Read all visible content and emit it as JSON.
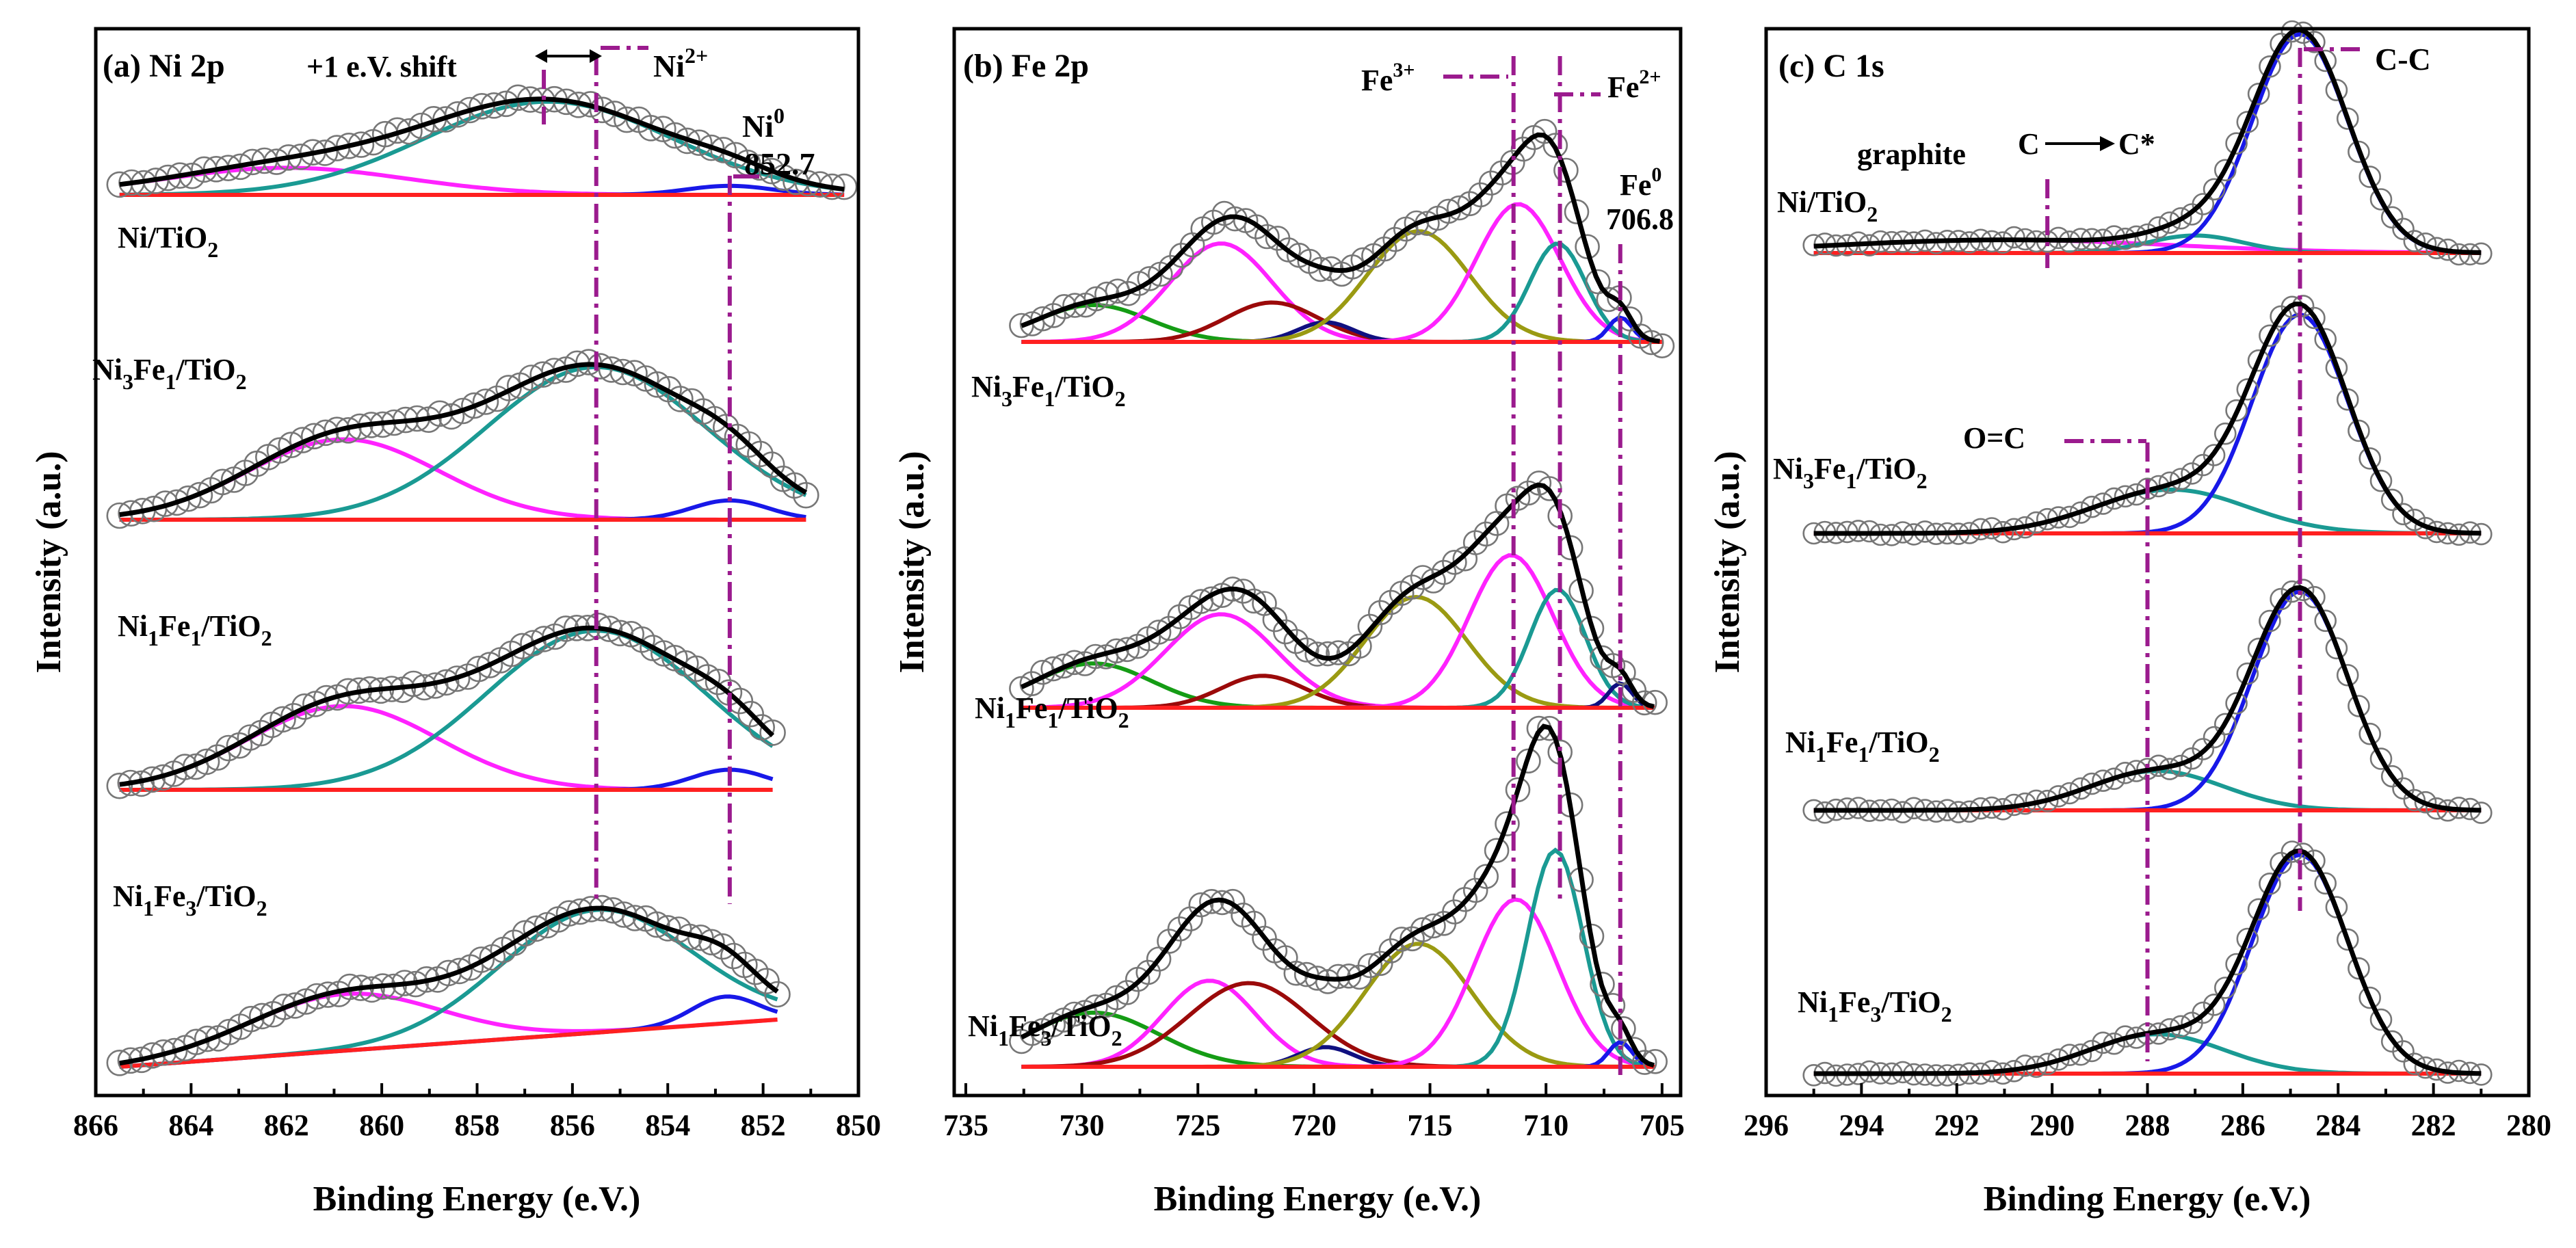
{
  "colors": {
    "experimental": "#777777",
    "envelope": "#000000",
    "background": "#ff2020",
    "dashed_marker": "#9b1b8e",
    "magenta": "#ff22ff",
    "teal": "#1a9a93",
    "blue": "#1818e8",
    "darkred": "#9b0a0a",
    "olive": "#9a9a12",
    "green": "#159c15",
    "navy": "#101080"
  },
  "chart_data": [
    {
      "type": "line",
      "panel": "(a)",
      "title": "Ni 2p",
      "xlabel": "Binding Energy (e.V.)",
      "ylabel": "Intensity (a.u.)",
      "xlim": [
        866,
        850
      ],
      "x_ticks": [
        "866",
        "864",
        "862",
        "860",
        "858",
        "856",
        "854",
        "852",
        "850"
      ],
      "x_tick_values": [
        866,
        864,
        862,
        860,
        858,
        856,
        854,
        852,
        850
      ],
      "x_range": [
        865.5,
        850.3
      ],
      "samples": [
        {
          "name": "Ni/TiO2",
          "label_main": "Ni/TiO",
          "label_sub": "2",
          "x_end": 850.3,
          "bg_start": 0.0,
          "bg_end": 0.0,
          "noise": 0.018,
          "components": [
            {
              "color": "magenta",
              "center": 862.0,
              "height": 0.18,
              "width": 2.5
            },
            {
              "color": "teal",
              "center": 856.5,
              "height": 0.62,
              "width": 2.6
            },
            {
              "color": "blue",
              "center": 852.7,
              "height": 0.06,
              "width": 0.9
            }
          ]
        },
        {
          "name": "Ni3Fe1/TiO2",
          "label_parts": [
            "Ni",
            "3",
            "Fe",
            "1",
            "/TiO",
            "2"
          ],
          "x_end": 851.1,
          "bg_start": 0.0,
          "bg_end": 0.0,
          "noise": 0.018,
          "components": [
            {
              "color": "magenta",
              "center": 860.8,
              "height": 0.5,
              "width": 2.0
            },
            {
              "color": "teal",
              "center": 855.5,
              "height": 0.95,
              "width": 2.3
            },
            {
              "color": "blue",
              "center": 852.7,
              "height": 0.12,
              "width": 0.8
            }
          ]
        },
        {
          "name": "Ni1Fe1/TiO2",
          "label_parts": [
            "Ni",
            "1",
            "Fe",
            "1",
            "/TiO",
            "2"
          ],
          "x_end": 851.8,
          "bg_start": 0.0,
          "bg_end": 0.0,
          "noise": 0.018,
          "components": [
            {
              "color": "magenta",
              "center": 860.8,
              "height": 0.5,
              "width": 2.0
            },
            {
              "color": "teal",
              "center": 855.5,
              "height": 0.95,
              "width": 2.3
            },
            {
              "color": "blue",
              "center": 852.7,
              "height": 0.12,
              "width": 0.8
            }
          ]
        },
        {
          "name": "Ni1Fe3/TiO2",
          "label_parts": [
            "Ni",
            "1",
            "Fe",
            "3",
            "/TiO",
            "2"
          ],
          "x_end": 851.7,
          "bg_start": 0.0,
          "bg_end": 0.3,
          "noise": 0.018,
          "components": [
            {
              "color": "magenta",
              "center": 860.8,
              "height": 0.36,
              "width": 2.0
            },
            {
              "color": "teal",
              "center": 855.5,
              "height": 0.78,
              "width": 2.0
            },
            {
              "color": "blue",
              "center": 852.8,
              "height": 0.17,
              "width": 0.7
            }
          ]
        }
      ],
      "reference_lines": [
        {
          "x": 855.5,
          "label": "Ni",
          "sup": "2+"
        },
        {
          "x": 852.7,
          "label": "Ni",
          "sup": "0",
          "value_label": "852.7"
        },
        {
          "x": 856.6,
          "label": ""
        }
      ],
      "annotations": [
        "+1 e.V. shift"
      ]
    },
    {
      "type": "line",
      "panel": "(b)",
      "title": "Fe 2p",
      "xlabel": "Binding Energy (e.V.)",
      "ylabel": "Intensity (a.u.)",
      "xlim": [
        735.5,
        704.2
      ],
      "x_ticks": [
        "735",
        "730",
        "725",
        "720",
        "715",
        "710",
        "705"
      ],
      "x_tick_values": [
        735,
        730,
        725,
        720,
        715,
        710,
        705
      ],
      "x_range": [
        732.6,
        705.0
      ],
      "samples": [
        {
          "name": "Ni3Fe1/TiO2",
          "label_parts": [
            "Ni",
            "3",
            "Fe",
            "1",
            "/TiO",
            "2"
          ],
          "x_end": 705.0,
          "bg_start": 0.0,
          "bg_end": 0.0,
          "noise": 0.02,
          "components": [
            {
              "color": "green",
              "center": 729.5,
              "height": 0.15,
              "width": 2.4
            },
            {
              "color": "magenta",
              "center": 724.0,
              "height": 0.4,
              "width": 2.2
            },
            {
              "color": "darkred",
              "center": 721.8,
              "height": 0.16,
              "width": 2.0
            },
            {
              "color": "navy",
              "center": 719.5,
              "height": 0.08,
              "width": 1.2
            },
            {
              "color": "olive",
              "center": 715.5,
              "height": 0.45,
              "width": 2.2
            },
            {
              "color": "magenta",
              "center": 711.2,
              "height": 0.56,
              "width": 1.8
            },
            {
              "color": "teal",
              "center": 709.5,
              "height": 0.4,
              "width": 1.2
            },
            {
              "color": "blue",
              "center": 706.8,
              "height": 0.1,
              "width": 0.5
            }
          ]
        },
        {
          "name": "Ni1Fe1/TiO2",
          "label_parts": [
            "Ni",
            "1",
            "Fe",
            "1",
            "/TiO",
            "2"
          ],
          "x_end": 705.3,
          "bg_start": 0.0,
          "bg_end": 0.0,
          "noise": 0.02,
          "components": [
            {
              "color": "green",
              "center": 729.5,
              "height": 0.18,
              "width": 2.5
            },
            {
              "color": "magenta",
              "center": 724.0,
              "height": 0.38,
              "width": 2.4
            },
            {
              "color": "darkred",
              "center": 722.2,
              "height": 0.13,
              "width": 1.8
            },
            {
              "color": "olive",
              "center": 715.6,
              "height": 0.45,
              "width": 2.2
            },
            {
              "color": "magenta",
              "center": 711.5,
              "height": 0.62,
              "width": 1.8
            },
            {
              "color": "teal",
              "center": 709.5,
              "height": 0.48,
              "width": 1.2
            },
            {
              "color": "navy",
              "center": 706.8,
              "height": 0.1,
              "width": 0.5
            }
          ]
        },
        {
          "name": "Ni1Fe3/TiO2",
          "label_parts": [
            "Ni",
            "1",
            "Fe",
            "3",
            "/TiO",
            "2"
          ],
          "x_end": 705.3,
          "bg_start": 0.0,
          "bg_end": 0.0,
          "noise": 0.02,
          "components": [
            {
              "color": "green",
              "center": 729.5,
              "height": 0.22,
              "width": 2.8
            },
            {
              "color": "magenta",
              "center": 724.5,
              "height": 0.35,
              "width": 2.0
            },
            {
              "color": "darkred",
              "center": 722.8,
              "height": 0.34,
              "width": 2.6
            },
            {
              "color": "navy",
              "center": 719.5,
              "height": 0.08,
              "width": 1.2
            },
            {
              "color": "olive",
              "center": 715.5,
              "height": 0.5,
              "width": 2.3
            },
            {
              "color": "magenta",
              "center": 711.3,
              "height": 0.68,
              "width": 1.8
            },
            {
              "color": "teal",
              "center": 709.6,
              "height": 0.88,
              "width": 1.2
            },
            {
              "color": "blue",
              "center": 706.8,
              "height": 0.1,
              "width": 0.5
            }
          ]
        }
      ],
      "reference_lines": [
        {
          "x": 711.4,
          "label": "Fe",
          "sup": "3+"
        },
        {
          "x": 709.4,
          "label": "Fe",
          "sup": "2+"
        },
        {
          "x": 706.8,
          "label": "Fe",
          "sup": "0",
          "value_label": "706.8"
        }
      ]
    },
    {
      "type": "line",
      "panel": "(c)",
      "title": "C 1s",
      "xlabel": "Binding Energy (e.V.)",
      "ylabel": "Intensity (a.u.)",
      "xlim": [
        296,
        280
      ],
      "x_ticks": [
        "296",
        "294",
        "292",
        "290",
        "288",
        "286",
        "284",
        "282",
        "280"
      ],
      "x_tick_values": [
        296,
        294,
        292,
        290,
        288,
        286,
        284,
        282,
        280
      ],
      "x_range": [
        295.0,
        281.0
      ],
      "samples": [
        {
          "name": "Ni/TiO2",
          "label_main": "Ni/TiO",
          "label_sub": "2",
          "x_end": 281.0,
          "bg_start": 0.0,
          "bg_end": 0.0,
          "noise": 0.012,
          "components": [
            {
              "color": "magenta",
              "center": 291.0,
              "height": 0.06,
              "width": 3.5
            },
            {
              "color": "teal",
              "center": 287.0,
              "height": 0.08,
              "width": 1.0
            },
            {
              "color": "blue",
              "center": 284.8,
              "height": 1.0,
              "width": 1.0
            }
          ]
        },
        {
          "name": "Ni3Fe1/TiO2",
          "label_parts": [
            "Ni",
            "3",
            "Fe",
            "1",
            "/TiO",
            "2"
          ],
          "x_end": 281.0,
          "bg_start": 0.0,
          "bg_end": 0.0,
          "noise": 0.012,
          "components": [
            {
              "color": "teal",
              "center": 287.5,
              "height": 0.2,
              "width": 1.6
            },
            {
              "color": "blue",
              "center": 284.8,
              "height": 1.0,
              "width": 1.0
            }
          ]
        },
        {
          "name": "Ni1Fe1/TiO2",
          "label_parts": [
            "Ni",
            "1",
            "Fe",
            "1",
            "/TiO",
            "2"
          ],
          "x_end": 281.0,
          "bg_start": 0.0,
          "bg_end": 0.0,
          "noise": 0.012,
          "components": [
            {
              "color": "teal",
              "center": 287.8,
              "height": 0.18,
              "width": 1.4
            },
            {
              "color": "blue",
              "center": 284.8,
              "height": 1.0,
              "width": 1.0
            }
          ]
        },
        {
          "name": "Ni1Fe3/TiO2",
          "label_parts": [
            "Ni",
            "1",
            "Fe",
            "3",
            "/TiO",
            "2"
          ],
          "x_end": 281.0,
          "bg_start": 0.0,
          "bg_end": 0.0,
          "noise": 0.012,
          "components": [
            {
              "color": "teal",
              "center": 287.8,
              "height": 0.18,
              "width": 1.4
            },
            {
              "color": "blue",
              "center": 284.8,
              "height": 1.0,
              "width": 1.0
            }
          ]
        }
      ],
      "reference_lines": [
        {
          "x": 284.8,
          "label": "C-C"
        },
        {
          "x": 290.1,
          "label": "graphite"
        },
        {
          "x": 288.0,
          "label": "O=C"
        }
      ],
      "annotations": [
        "C",
        "C*"
      ]
    }
  ]
}
